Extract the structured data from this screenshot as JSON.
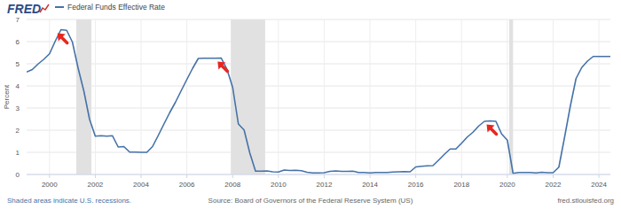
{
  "chart_data": {
    "type": "line",
    "logo": "FRED",
    "ylabel": "Percent",
    "annotations": [
      "Shaded areas indicate U.S. recessions.",
      "Source: Board of Governors of the Federal Reserve System (US)",
      "fred.stlouisfed.org"
    ],
    "legend": "top",
    "grid": true,
    "xlim": [
      1999,
      2024.5
    ],
    "xticks": [
      2000,
      2002,
      2004,
      2006,
      2008,
      2010,
      2012,
      2014,
      2016,
      2018,
      2020,
      2022,
      2024
    ],
    "ylim": [
      0,
      7
    ],
    "yticks": [
      0,
      1,
      2,
      3,
      4,
      5,
      6,
      7
    ],
    "recessions": [
      [
        2001.17,
        2001.83
      ],
      [
        2007.92,
        2009.42
      ],
      [
        2020.08,
        2020.25
      ]
    ],
    "x": [
      1999,
      1999.25,
      1999.5,
      1999.75,
      2000,
      2000.25,
      2000.5,
      2000.75,
      2001,
      2001.25,
      2001.5,
      2001.75,
      2002,
      2002.25,
      2002.5,
      2002.75,
      2003,
      2003.25,
      2003.5,
      2003.75,
      2004,
      2004.25,
      2004.5,
      2004.75,
      2005,
      2005.25,
      2005.5,
      2005.75,
      2006,
      2006.25,
      2006.5,
      2006.75,
      2007,
      2007.25,
      2007.5,
      2007.75,
      2008,
      2008.25,
      2008.5,
      2008.75,
      2009,
      2009.25,
      2009.5,
      2009.75,
      2010,
      2010.25,
      2010.5,
      2010.75,
      2011,
      2011.25,
      2011.5,
      2011.75,
      2012,
      2012.25,
      2012.5,
      2012.75,
      2013,
      2013.25,
      2013.5,
      2013.75,
      2014,
      2014.25,
      2014.5,
      2014.75,
      2015,
      2015.25,
      2015.5,
      2015.75,
      2016,
      2016.25,
      2016.5,
      2016.75,
      2017,
      2017.25,
      2017.5,
      2017.75,
      2018,
      2018.25,
      2018.5,
      2018.75,
      2019,
      2019.25,
      2019.5,
      2019.75,
      2020,
      2020.25,
      2020.5,
      2020.75,
      2021,
      2021.25,
      2021.5,
      2021.75,
      2022,
      2022.25,
      2022.5,
      2022.75,
      2023,
      2023.25,
      2023.5,
      2023.75,
      2024,
      2024.25,
      2024.5
    ],
    "series": [
      {
        "name": "Federal Funds Effective Rate",
        "color": "#4572a7",
        "values": [
          4.63,
          4.74,
          4.99,
          5.2,
          5.45,
          6.02,
          6.54,
          6.51,
          5.98,
          4.8,
          3.77,
          2.49,
          1.73,
          1.75,
          1.73,
          1.75,
          1.24,
          1.26,
          1.01,
          1.01,
          1.0,
          1.0,
          1.26,
          1.76,
          2.28,
          2.79,
          3.26,
          3.78,
          4.29,
          4.79,
          5.24,
          5.25,
          5.25,
          5.25,
          5.26,
          4.76,
          3.94,
          2.28,
          2.01,
          0.97,
          0.15,
          0.15,
          0.16,
          0.12,
          0.11,
          0.2,
          0.18,
          0.19,
          0.17,
          0.1,
          0.07,
          0.07,
          0.08,
          0.14,
          0.16,
          0.14,
          0.14,
          0.15,
          0.09,
          0.09,
          0.07,
          0.09,
          0.09,
          0.09,
          0.11,
          0.12,
          0.13,
          0.12,
          0.34,
          0.37,
          0.39,
          0.4,
          0.65,
          0.91,
          1.15,
          1.15,
          1.41,
          1.69,
          1.91,
          2.19,
          2.4,
          2.42,
          2.4,
          1.83,
          1.55,
          0.05,
          0.09,
          0.09,
          0.09,
          0.07,
          0.1,
          0.08,
          0.08,
          0.33,
          1.68,
          3.08,
          4.33,
          4.83,
          5.12,
          5.33,
          5.33,
          5.33,
          5.33
        ]
      }
    ]
  }
}
